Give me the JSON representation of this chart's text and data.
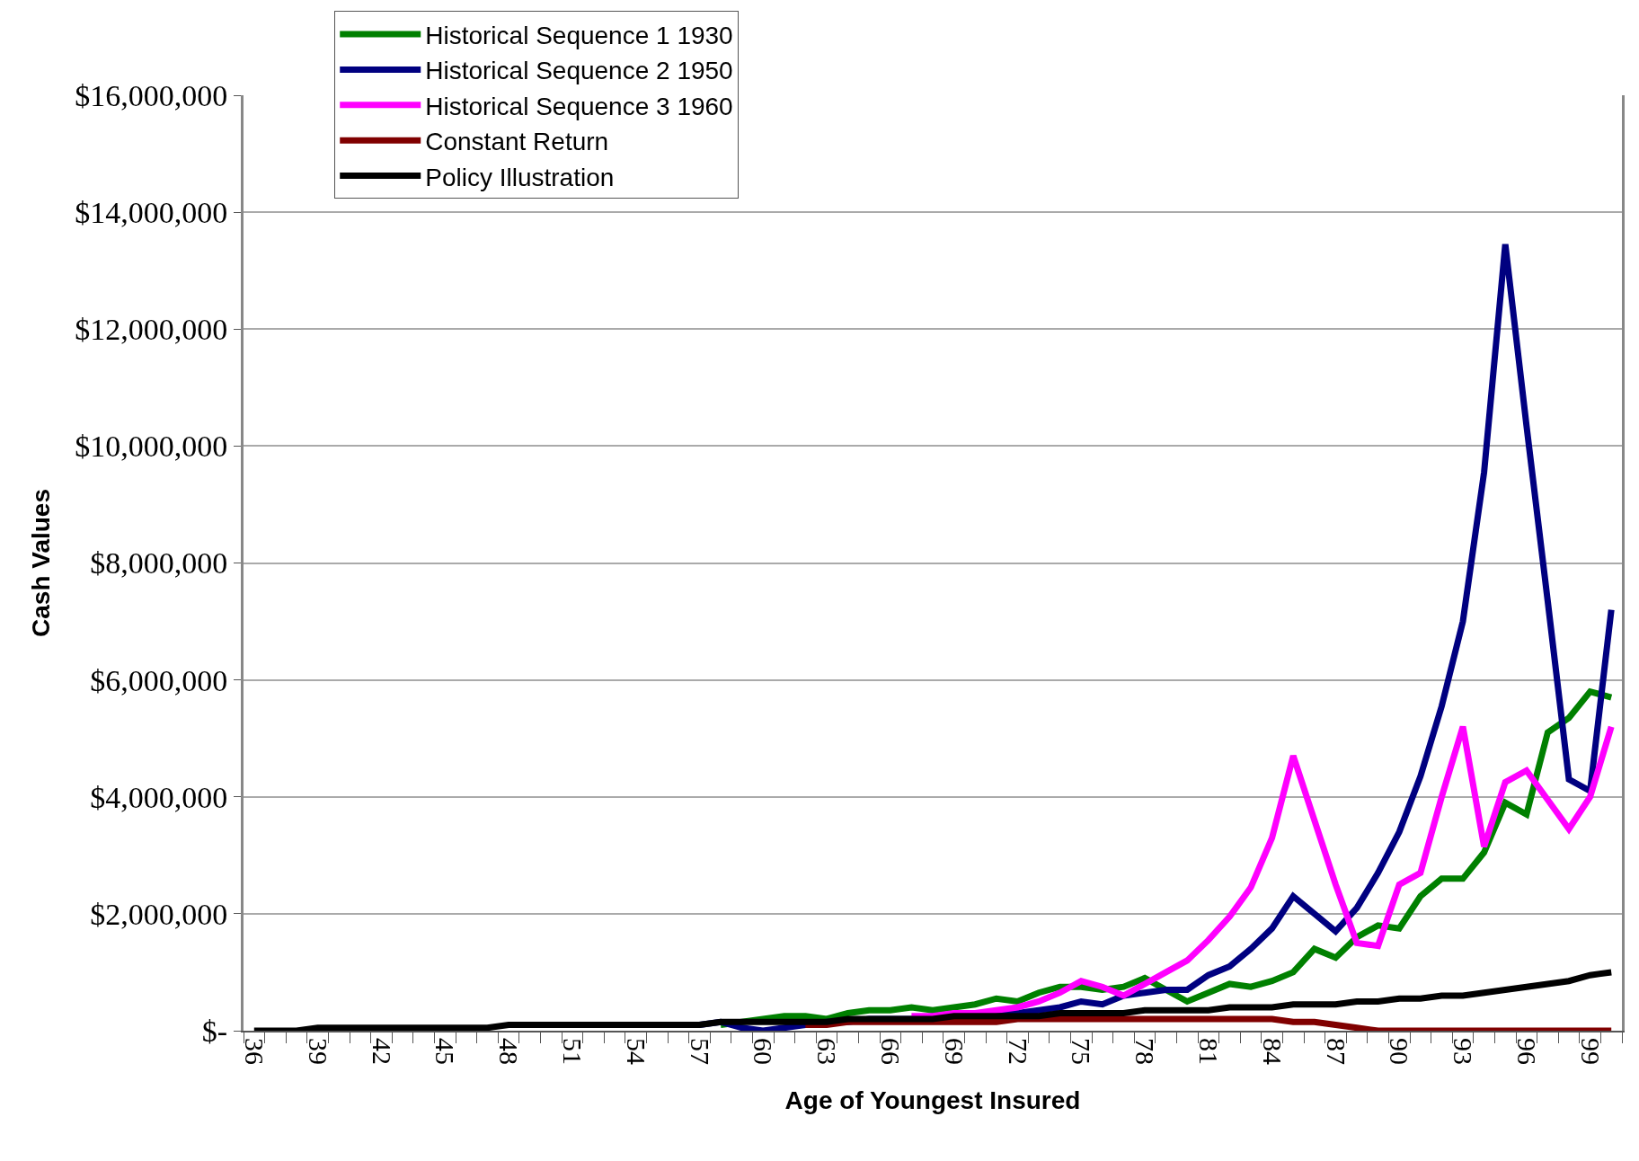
{
  "chart_data": {
    "type": "line",
    "xlabel": "Age of Youngest Insured",
    "ylabel": "Cash Values",
    "categories": [
      "36",
      null,
      null,
      "39",
      null,
      null,
      "42",
      null,
      null,
      "45",
      null,
      null,
      "48",
      null,
      null,
      "51",
      null,
      null,
      "54",
      null,
      null,
      "57",
      null,
      null,
      "60",
      null,
      null,
      "63",
      null,
      null,
      "66",
      null,
      null,
      "69",
      null,
      null,
      "72",
      null,
      null,
      "75",
      null,
      null,
      "78",
      null,
      null,
      "81",
      null,
      null,
      "84",
      null,
      null,
      "87",
      null,
      null,
      "90",
      null,
      null,
      "93",
      null,
      null,
      "96",
      null,
      null,
      "99",
      null
    ],
    "ylim": [
      0,
      16000000
    ],
    "yticks": [
      {
        "value": 0,
        "label": "$-"
      },
      {
        "value": 2000000,
        "label": "$2,000,000"
      },
      {
        "value": 4000000,
        "label": "$4,000,000"
      },
      {
        "value": 6000000,
        "label": "$6,000,000"
      },
      {
        "value": 8000000,
        "label": "$8,000,000"
      },
      {
        "value": 10000000,
        "label": "$10,000,000"
      },
      {
        "value": 12000000,
        "label": "$12,000,000"
      },
      {
        "value": 14000000,
        "label": "$14,000,000"
      },
      {
        "value": 16000000,
        "label": "$16,000,000"
      }
    ],
    "grid": "y",
    "legend": "top left",
    "marker": "none",
    "line_style": "solid",
    "series": [
      {
        "name": "Historical Sequence 1 1930",
        "color": "#008000",
        "values": [
          null,
          null,
          null,
          null,
          null,
          null,
          null,
          null,
          null,
          null,
          null,
          null,
          null,
          null,
          null,
          null,
          null,
          null,
          null,
          null,
          null,
          null,
          100000,
          150000,
          200000,
          250000,
          250000,
          200000,
          300000,
          350000,
          350000,
          400000,
          350000,
          400000,
          450000,
          550000,
          500000,
          650000,
          750000,
          750000,
          700000,
          750000,
          900000,
          700000,
          500000,
          650000,
          800000,
          750000,
          850000,
          1000000,
          1400000,
          1250000,
          1600000,
          1800000,
          1750000,
          2300000,
          2600000,
          2600000,
          3050000,
          3900000,
          3700000,
          5100000,
          5350000,
          5800000,
          5700000
        ]
      },
      {
        "name": "Historical Sequence 2 1950",
        "color": "#000080",
        "values": [
          null,
          null,
          null,
          null,
          null,
          null,
          null,
          null,
          null,
          null,
          null,
          null,
          null,
          null,
          null,
          null,
          null,
          null,
          null,
          null,
          null,
          100000,
          150000,
          50000,
          0,
          50000,
          100000,
          150000,
          150000,
          200000,
          200000,
          200000,
          250000,
          250000,
          250000,
          300000,
          300000,
          350000,
          400000,
          500000,
          450000,
          600000,
          650000,
          700000,
          700000,
          950000,
          1100000,
          1400000,
          1750000,
          2300000,
          2000000,
          1700000,
          2100000,
          2700000,
          3400000,
          4350000,
          5550000,
          7000000,
          9550000,
          13450000,
          10350000,
          7350000,
          4300000,
          4100000,
          7200000
        ]
      },
      {
        "name": "Historical Sequence 3 1960",
        "color": "#ff00ff",
        "values": [
          null,
          null,
          null,
          null,
          null,
          null,
          null,
          null,
          null,
          null,
          null,
          null,
          null,
          null,
          null,
          null,
          null,
          null,
          null,
          null,
          null,
          null,
          null,
          null,
          null,
          null,
          null,
          null,
          null,
          null,
          null,
          250000,
          250000,
          300000,
          300000,
          350000,
          400000,
          500000,
          650000,
          850000,
          750000,
          600000,
          800000,
          1000000,
          1200000,
          1550000,
          1950000,
          2450000,
          3300000,
          4700000,
          3600000,
          2500000,
          1500000,
          1450000,
          2500000,
          2700000,
          4000000,
          5200000,
          3150000,
          4250000,
          4450000,
          3950000,
          3450000,
          4000000,
          5200000
        ]
      },
      {
        "name": "Constant Return",
        "color": "#800000",
        "values": [
          null,
          null,
          null,
          null,
          null,
          null,
          null,
          null,
          null,
          null,
          null,
          null,
          null,
          null,
          null,
          null,
          null,
          null,
          null,
          null,
          null,
          null,
          null,
          null,
          null,
          null,
          100000,
          100000,
          150000,
          150000,
          150000,
          150000,
          150000,
          150000,
          150000,
          150000,
          200000,
          200000,
          200000,
          200000,
          200000,
          200000,
          200000,
          200000,
          200000,
          200000,
          200000,
          200000,
          200000,
          150000,
          150000,
          100000,
          50000,
          0,
          0,
          0,
          0,
          0,
          0,
          0,
          0,
          0,
          0,
          0,
          0
        ]
      },
      {
        "name": "Policy Illustration",
        "color": "#000000",
        "values": [
          0,
          0,
          0,
          50000,
          50000,
          50000,
          50000,
          50000,
          50000,
          50000,
          50000,
          50000,
          100000,
          100000,
          100000,
          100000,
          100000,
          100000,
          100000,
          100000,
          100000,
          100000,
          150000,
          150000,
          150000,
          150000,
          150000,
          150000,
          200000,
          200000,
          200000,
          200000,
          200000,
          250000,
          250000,
          250000,
          250000,
          250000,
          300000,
          300000,
          300000,
          300000,
          350000,
          350000,
          350000,
          350000,
          400000,
          400000,
          400000,
          450000,
          450000,
          450000,
          500000,
          500000,
          550000,
          550000,
          600000,
          600000,
          650000,
          700000,
          750000,
          800000,
          850000,
          950000,
          1000000
        ]
      }
    ]
  }
}
